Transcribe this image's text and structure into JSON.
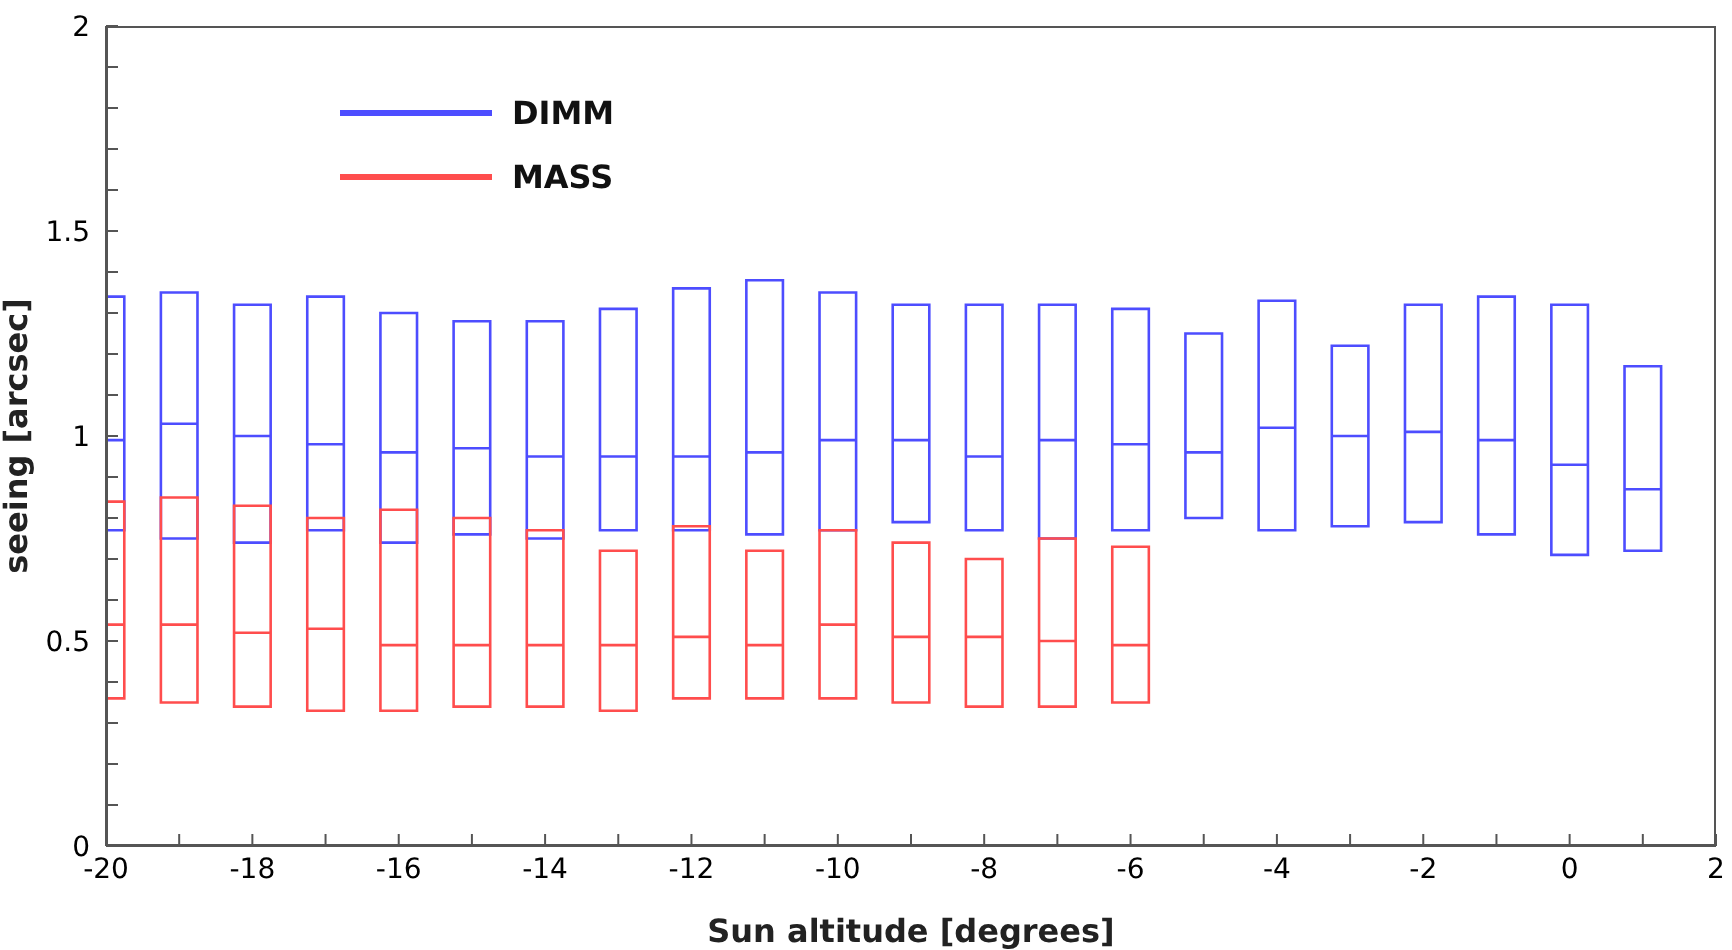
{
  "chart_data": {
    "type": "box",
    "xlabel": "Sun altitude [degrees]",
    "ylabel": "seeing [arcsec]",
    "xlim": [
      -20,
      2
    ],
    "xticks": [
      -20,
      {
        "value": -19,
        "label": null
      },
      -18,
      {
        "value": -17,
        "label": null
      },
      -16,
      {
        "value": -15,
        "label": null
      },
      -14,
      {
        "value": -13,
        "label": null
      },
      -12,
      {
        "value": -11,
        "label": null
      },
      -10,
      {
        "value": -9,
        "label": null
      },
      -8,
      {
        "value": -7,
        "label": null
      },
      -6,
      {
        "value": -5,
        "label": null
      },
      -4,
      {
        "value": -3,
        "label": null
      },
      -2,
      {
        "value": -1,
        "label": null
      },
      0,
      {
        "value": 1,
        "label": null
      },
      2
    ],
    "ylim": [
      0,
      2
    ],
    "yticks": [
      0,
      {
        "value": 0.1,
        "label": null
      },
      {
        "value": 0.2,
        "label": null
      },
      {
        "value": 0.3,
        "label": null
      },
      {
        "value": 0.4,
        "label": null
      },
      0.5,
      {
        "value": 0.6,
        "label": null
      },
      {
        "value": 0.7,
        "label": null
      },
      {
        "value": 0.8,
        "label": null
      },
      {
        "value": 0.9,
        "label": null
      },
      1,
      {
        "value": 1.1,
        "label": null
      },
      {
        "value": 1.2,
        "label": null
      },
      {
        "value": 1.3,
        "label": null
      },
      {
        "value": 1.4,
        "label": null
      },
      1.5,
      {
        "value": 1.6,
        "label": null
      },
      {
        "value": 1.7,
        "label": null
      },
      {
        "value": 1.8,
        "label": null
      },
      {
        "value": 1.9,
        "label": null
      },
      2
    ],
    "grid": false,
    "legend": "top left",
    "series": [
      {
        "name": "DIMM",
        "color": "#4d4dff",
        "x": [
          -20,
          -19,
          -18,
          -17,
          -16,
          -15,
          -14,
          -13,
          -12,
          -11,
          -10,
          -9,
          -8,
          -7,
          -6,
          -5,
          -4,
          -3,
          -2,
          -1,
          0,
          1
        ],
        "boxes": [
          {
            "low": 0.77,
            "q1": 0.77,
            "median": 0.99,
            "q3": 1.34,
            "high": 1.34
          },
          {
            "low": 0.75,
            "q1": 0.75,
            "median": 1.03,
            "q3": 1.35,
            "high": 1.35
          },
          {
            "low": 0.74,
            "q1": 0.74,
            "median": 1.0,
            "q3": 1.32,
            "high": 1.32
          },
          {
            "low": 0.77,
            "q1": 0.77,
            "median": 0.98,
            "q3": 1.34,
            "high": 1.34
          },
          {
            "low": 0.74,
            "q1": 0.74,
            "median": 0.96,
            "q3": 1.3,
            "high": 1.3
          },
          {
            "low": 0.76,
            "q1": 0.76,
            "median": 0.97,
            "q3": 1.28,
            "high": 1.28
          },
          {
            "low": 0.75,
            "q1": 0.75,
            "median": 0.95,
            "q3": 1.28,
            "high": 1.28
          },
          {
            "low": 0.77,
            "q1": 0.77,
            "median": 0.95,
            "q3": 1.31,
            "high": 1.31
          },
          {
            "low": 0.77,
            "q1": 0.77,
            "median": 0.95,
            "q3": 1.36,
            "high": 1.36
          },
          {
            "low": 0.76,
            "q1": 0.76,
            "median": 0.96,
            "q3": 1.38,
            "high": 1.38
          },
          {
            "low": 0.77,
            "q1": 0.77,
            "median": 0.99,
            "q3": 1.35,
            "high": 1.35
          },
          {
            "low": 0.79,
            "q1": 0.79,
            "median": 0.99,
            "q3": 1.32,
            "high": 1.32
          },
          {
            "low": 0.77,
            "q1": 0.77,
            "median": 0.95,
            "q3": 1.32,
            "high": 1.32
          },
          {
            "low": 0.75,
            "q1": 0.75,
            "median": 0.99,
            "q3": 1.32,
            "high": 1.32
          },
          {
            "low": 0.77,
            "q1": 0.77,
            "median": 0.98,
            "q3": 1.31,
            "high": 1.31
          },
          {
            "low": 0.8,
            "q1": 0.8,
            "median": 0.96,
            "q3": 1.25,
            "high": 1.25
          },
          {
            "low": 0.77,
            "q1": 0.77,
            "median": 1.02,
            "q3": 1.33,
            "high": 1.33
          },
          {
            "low": 0.78,
            "q1": 0.78,
            "median": 1.0,
            "q3": 1.22,
            "high": 1.22
          },
          {
            "low": 0.79,
            "q1": 0.79,
            "median": 1.01,
            "q3": 1.32,
            "high": 1.32
          },
          {
            "low": 0.76,
            "q1": 0.76,
            "median": 0.99,
            "q3": 1.34,
            "high": 1.34
          },
          {
            "low": 0.71,
            "q1": 0.71,
            "median": 0.93,
            "q3": 1.32,
            "high": 1.32
          },
          {
            "low": 0.72,
            "q1": 0.72,
            "median": 0.87,
            "q3": 1.17,
            "high": 1.17
          }
        ]
      },
      {
        "name": "MASS",
        "color": "#ff4d4d",
        "x": [
          -20,
          -19,
          -18,
          -17,
          -16,
          -15,
          -14,
          -13,
          -12,
          -11,
          -10,
          -9,
          -8,
          -7,
          -6
        ],
        "boxes": [
          {
            "low": 0.36,
            "q1": 0.36,
            "median": 0.54,
            "q3": 0.84,
            "high": 0.84
          },
          {
            "low": 0.35,
            "q1": 0.35,
            "median": 0.54,
            "q3": 0.85,
            "high": 0.85
          },
          {
            "low": 0.34,
            "q1": 0.34,
            "median": 0.52,
            "q3": 0.83,
            "high": 0.83
          },
          {
            "low": 0.33,
            "q1": 0.33,
            "median": 0.53,
            "q3": 0.8,
            "high": 0.8
          },
          {
            "low": 0.33,
            "q1": 0.33,
            "median": 0.49,
            "q3": 0.82,
            "high": 0.82
          },
          {
            "low": 0.34,
            "q1": 0.34,
            "median": 0.49,
            "q3": 0.8,
            "high": 0.8
          },
          {
            "low": 0.34,
            "q1": 0.34,
            "median": 0.49,
            "q3": 0.77,
            "high": 0.77
          },
          {
            "low": 0.33,
            "q1": 0.33,
            "median": 0.49,
            "q3": 0.72,
            "high": 0.72
          },
          {
            "low": 0.36,
            "q1": 0.36,
            "median": 0.51,
            "q3": 0.78,
            "high": 0.78
          },
          {
            "low": 0.36,
            "q1": 0.36,
            "median": 0.49,
            "q3": 0.72,
            "high": 0.72
          },
          {
            "low": 0.36,
            "q1": 0.36,
            "median": 0.54,
            "q3": 0.77,
            "high": 0.77
          },
          {
            "low": 0.35,
            "q1": 0.35,
            "median": 0.51,
            "q3": 0.74,
            "high": 0.74
          },
          {
            "low": 0.34,
            "q1": 0.34,
            "median": 0.51,
            "q3": 0.7,
            "high": 0.7
          },
          {
            "low": 0.34,
            "q1": 0.34,
            "median": 0.5,
            "q3": 0.75,
            "high": 0.75
          },
          {
            "low": 0.35,
            "q1": 0.35,
            "median": 0.49,
            "q3": 0.73,
            "high": 0.73
          }
        ]
      }
    ]
  }
}
